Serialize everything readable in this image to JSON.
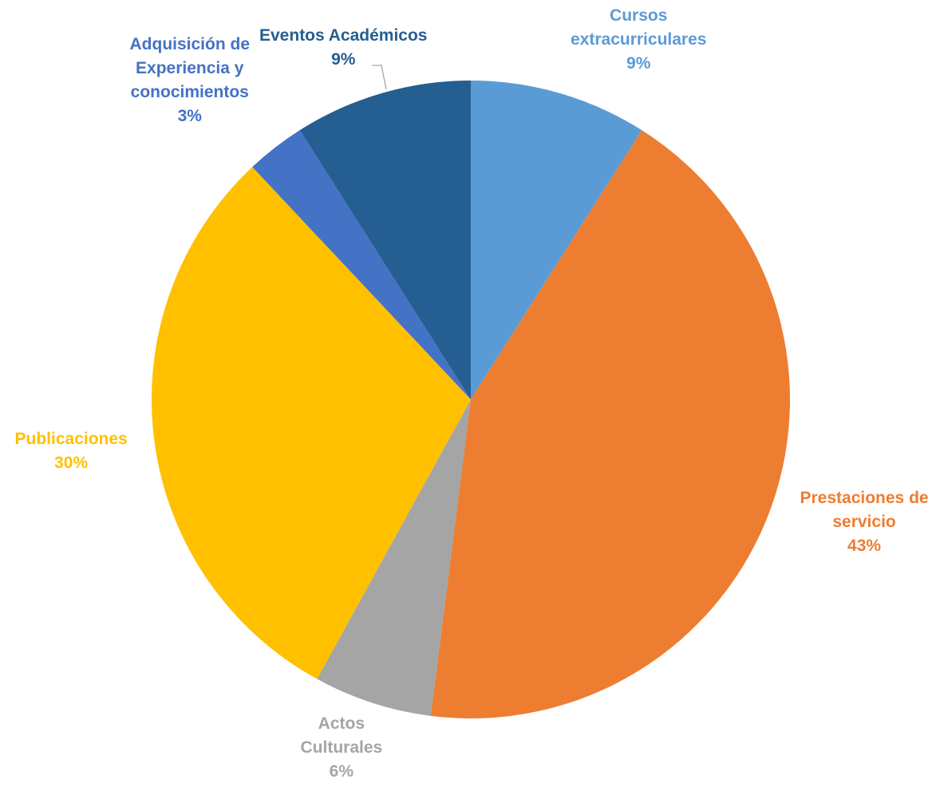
{
  "chart_data": {
    "type": "pie",
    "slices": [
      {
        "name": "Cursos extracurriculares",
        "label_lines": [
          "Cursos",
          "extracurriculares"
        ],
        "percent_text": "9%",
        "value": 9,
        "color": "#5B9BD5"
      },
      {
        "name": "Prestaciones de servicio",
        "label_lines": [
          "Prestaciones de",
          "servicio"
        ],
        "percent_text": "43%",
        "value": 43,
        "color": "#ED7D31"
      },
      {
        "name": "Actos Culturales",
        "label_lines": [
          "Actos",
          "Culturales"
        ],
        "percent_text": "6%",
        "value": 6,
        "color": "#A5A5A5"
      },
      {
        "name": "Publicaciones",
        "label_lines": [
          "Publicaciones"
        ],
        "percent_text": "30%",
        "value": 30,
        "color": "#FFC000"
      },
      {
        "name": "Adquisición de Experiencia y conocimientos",
        "label_lines": [
          "Adquisición de",
          "Experiencia y",
          "conocimientos"
        ],
        "percent_text": "3%",
        "value": 3,
        "color": "#4472C4"
      },
      {
        "name": "Eventos Académicos",
        "label_lines": [
          "Eventos Académicos"
        ],
        "percent_text": "9%",
        "value": 9,
        "color": "#255E91"
      }
    ],
    "start_angle_deg": 0,
    "direction": "clockwise",
    "legend": "none",
    "data_labels": "outside"
  }
}
